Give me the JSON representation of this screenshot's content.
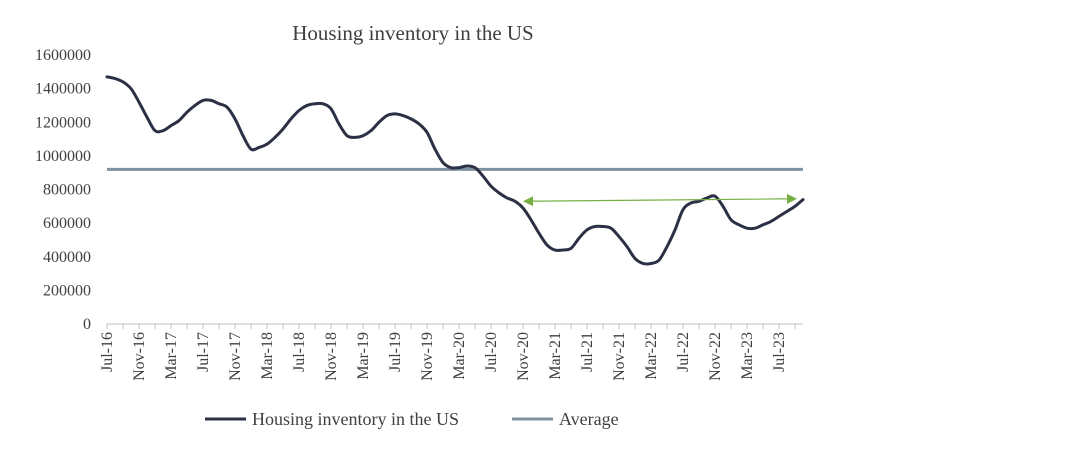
{
  "chart_data": {
    "type": "line",
    "title": "Housing inventory in the US",
    "xlabel": "",
    "ylabel": "",
    "ylim": [
      0,
      1600000
    ],
    "yticks": [
      0,
      200000,
      400000,
      600000,
      800000,
      1000000,
      1200000,
      1400000,
      1600000
    ],
    "ytick_labels": [
      "0",
      "200000",
      "400000",
      "600000",
      "800000",
      "1000000",
      "1200000",
      "1400000",
      "1600000"
    ],
    "xtick_labels": [
      "Jul-16",
      "Nov-16",
      "Mar-17",
      "Jul-17",
      "Nov-17",
      "Mar-18",
      "Jul-18",
      "Nov-18",
      "Mar-19",
      "Jul-19",
      "Nov-19",
      "Mar-20",
      "Jul-20",
      "Nov-20",
      "Mar-21",
      "Jul-21",
      "Nov-21",
      "Mar-22",
      "Jul-22",
      "Nov-22",
      "Mar-23",
      "Jul-23"
    ],
    "x_start": "Jul-16",
    "x_end": "Oct-23",
    "grid": false,
    "legend_position": "bottom",
    "series": [
      {
        "name": "Housing inventory in the US",
        "color": "#2b3044",
        "values": [
          1470000,
          1460000,
          1440000,
          1400000,
          1320000,
          1230000,
          1150000,
          1150000,
          1180000,
          1210000,
          1260000,
          1300000,
          1330000,
          1330000,
          1310000,
          1290000,
          1220000,
          1120000,
          1040000,
          1050000,
          1070000,
          1110000,
          1160000,
          1220000,
          1270000,
          1300000,
          1310000,
          1310000,
          1280000,
          1190000,
          1120000,
          1110000,
          1120000,
          1150000,
          1200000,
          1240000,
          1250000,
          1240000,
          1220000,
          1190000,
          1140000,
          1040000,
          960000,
          930000,
          930000,
          940000,
          930000,
          880000,
          820000,
          780000,
          750000,
          730000,
          690000,
          620000,
          540000,
          470000,
          440000,
          440000,
          450000,
          510000,
          560000,
          580000,
          580000,
          570000,
          520000,
          460000,
          390000,
          360000,
          360000,
          380000,
          460000,
          560000,
          680000,
          720000,
          730000,
          750000,
          760000,
          700000,
          620000,
          590000,
          570000,
          570000,
          590000,
          610000,
          640000,
          670000,
          700000,
          740000
        ]
      },
      {
        "name": "Average",
        "color": "#7f939e",
        "value": 920000
      }
    ],
    "annotations": [
      {
        "type": "double-arrow",
        "color": "#76b043",
        "from": {
          "x": "Nov-20",
          "y": 730000
        },
        "to": {
          "x": "Oct-23",
          "y": 745000
        }
      }
    ]
  }
}
